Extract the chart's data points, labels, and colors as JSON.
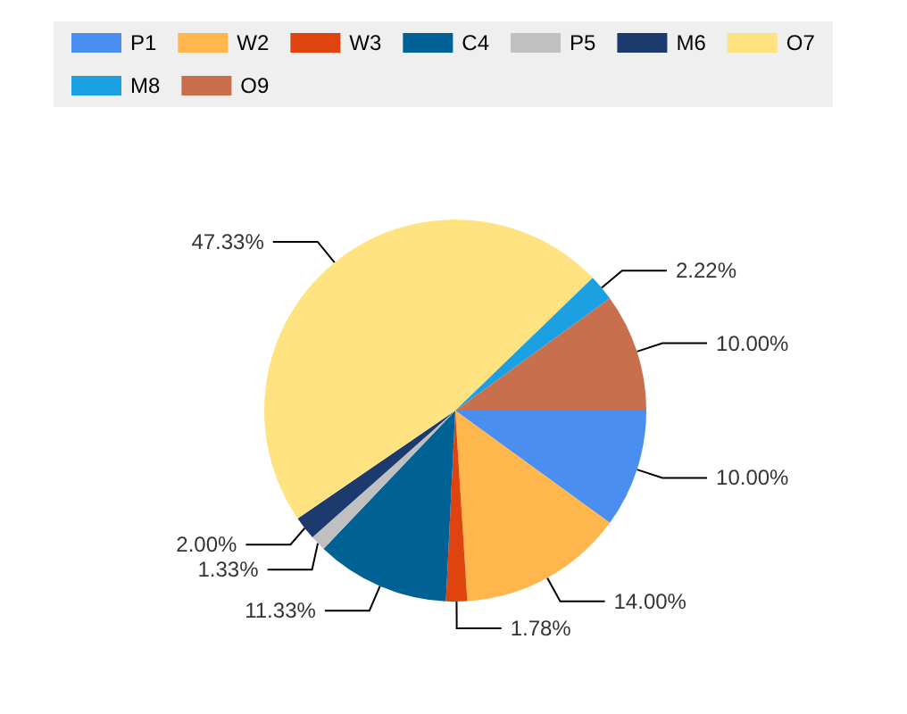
{
  "chart_data": {
    "type": "pie",
    "categories": [
      "P1",
      "W2",
      "W3",
      "C4",
      "P5",
      "M6",
      "O7",
      "M8",
      "O9"
    ],
    "values": [
      10.0,
      14.0,
      1.78,
      11.33,
      1.33,
      2.0,
      47.33,
      2.22,
      10.0
    ],
    "colors": [
      "#4a8ef0",
      "#ffb74d",
      "#e0440e",
      "#006195",
      "#c0c0c0",
      "#1c3a6e",
      "#ffe380",
      "#1ba1e2",
      "#c86f4e"
    ],
    "value_labels": [
      "10.00%",
      "14.00%",
      "1.78%",
      "11.33%",
      "1.33%",
      "2.00%",
      "47.33%",
      "2.22%",
      "10.00%"
    ],
    "legend": "top left"
  }
}
